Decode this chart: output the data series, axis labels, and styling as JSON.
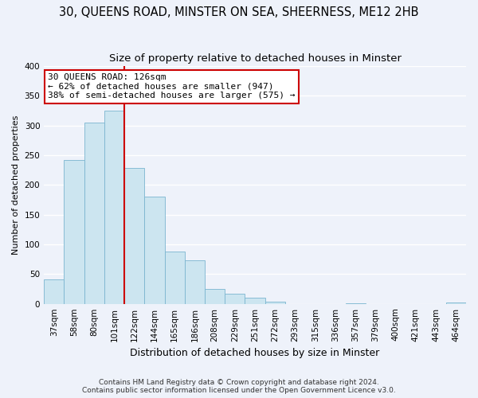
{
  "title": "30, QUEENS ROAD, MINSTER ON SEA, SHEERNESS, ME12 2HB",
  "subtitle": "Size of property relative to detached houses in Minster",
  "xlabel": "Distribution of detached houses by size in Minster",
  "ylabel": "Number of detached properties",
  "bar_categories": [
    "37sqm",
    "58sqm",
    "80sqm",
    "101sqm",
    "122sqm",
    "144sqm",
    "165sqm",
    "186sqm",
    "208sqm",
    "229sqm",
    "251sqm",
    "272sqm",
    "293sqm",
    "315sqm",
    "336sqm",
    "357sqm",
    "379sqm",
    "400sqm",
    "421sqm",
    "443sqm",
    "464sqm"
  ],
  "bar_values": [
    41,
    242,
    305,
    325,
    228,
    180,
    88,
    73,
    25,
    17,
    10,
    3,
    0,
    0,
    0,
    1,
    0,
    0,
    0,
    0,
    2
  ],
  "bar_color": "#cce5f0",
  "bar_edge_color": "#7ab5d0",
  "red_line_after_index": 3,
  "ylim": [
    0,
    400
  ],
  "yticks": [
    0,
    50,
    100,
    150,
    200,
    250,
    300,
    350,
    400
  ],
  "annotation_title": "30 QUEENS ROAD: 126sqm",
  "annotation_line1": "← 62% of detached houses are smaller (947)",
  "annotation_line2": "38% of semi-detached houses are larger (575) →",
  "footnote1": "Contains HM Land Registry data © Crown copyright and database right 2024.",
  "footnote2": "Contains public sector information licensed under the Open Government Licence v3.0.",
  "bg_color": "#eef2fa",
  "grid_color": "#ffffff",
  "box_facecolor": "#ffffff",
  "box_edgecolor": "#cc0000",
  "red_line_color": "#cc0000",
  "title_fontsize": 10.5,
  "subtitle_fontsize": 9.5,
  "ylabel_fontsize": 8,
  "xlabel_fontsize": 9,
  "tick_fontsize": 7.5,
  "ann_fontsize": 8,
  "footnote_fontsize": 6.5
}
